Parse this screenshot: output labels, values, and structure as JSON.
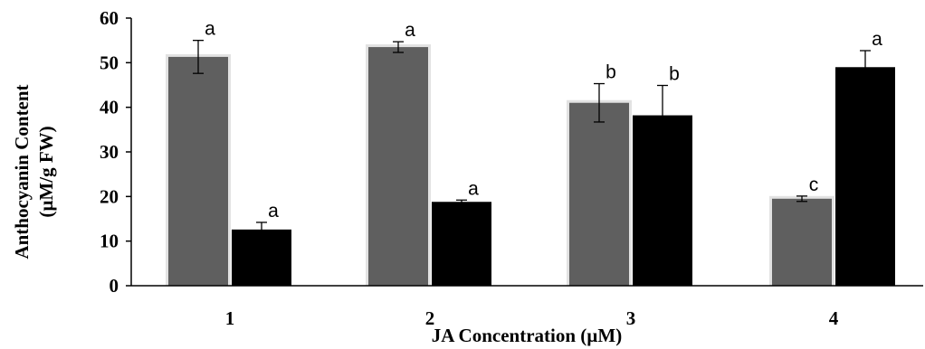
{
  "chart_data": {
    "type": "bar",
    "title": "",
    "xlabel": "JA Concentration (µM)",
    "ylabel_line1": "Anthocyanin Content",
    "ylabel_line2": "(µM/g FW)",
    "ylim": [
      0,
      60
    ],
    "yticks": [
      0,
      10,
      20,
      30,
      40,
      50,
      60
    ],
    "categories": [
      "1",
      "2",
      "3",
      "4"
    ],
    "series": [
      {
        "color": "#5f5f5f",
        "values": [
          51.3,
          53.5,
          41.0,
          19.5
        ],
        "errors": [
          3.7,
          1.2,
          4.3,
          0.6
        ],
        "labels": [
          "a",
          "a",
          "b",
          "c"
        ]
      },
      {
        "color": "#000000",
        "values": [
          12.6,
          18.8,
          38.2,
          49.0
        ],
        "errors": [
          1.6,
          0.4,
          6.7,
          3.7
        ],
        "labels": [
          "a",
          "a",
          "b",
          "a"
        ]
      }
    ],
    "grid": false,
    "legend": "none"
  }
}
